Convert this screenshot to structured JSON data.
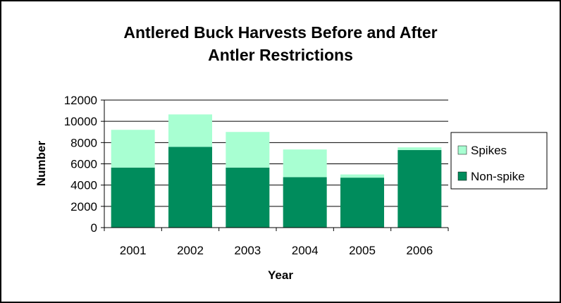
{
  "chart_data": {
    "type": "bar",
    "stacked": true,
    "title": "Antlered Buck Harvests Before and After Antler Restrictions",
    "title_lines": [
      "Antlered Buck Harvests Before and After",
      "Antler Restrictions"
    ],
    "xlabel": "Year",
    "ylabel": "Number",
    "categories": [
      "2001",
      "2002",
      "2003",
      "2004",
      "2005",
      "2006"
    ],
    "series": [
      {
        "name": "Non-spike",
        "color": "#008C5C",
        "values": [
          5650,
          7600,
          5650,
          4750,
          4700,
          7300
        ]
      },
      {
        "name": "Spikes",
        "color": "#A8FFD2",
        "values": [
          3550,
          3050,
          3350,
          2600,
          300,
          250
        ]
      }
    ],
    "ylim": [
      0,
      12000
    ],
    "yticks": [
      "0",
      "2000",
      "4000",
      "6000",
      "8000",
      "10000",
      "12000"
    ],
    "grid": true,
    "legend_position": "right",
    "legend_order": [
      "Spikes",
      "Non-spike"
    ]
  }
}
